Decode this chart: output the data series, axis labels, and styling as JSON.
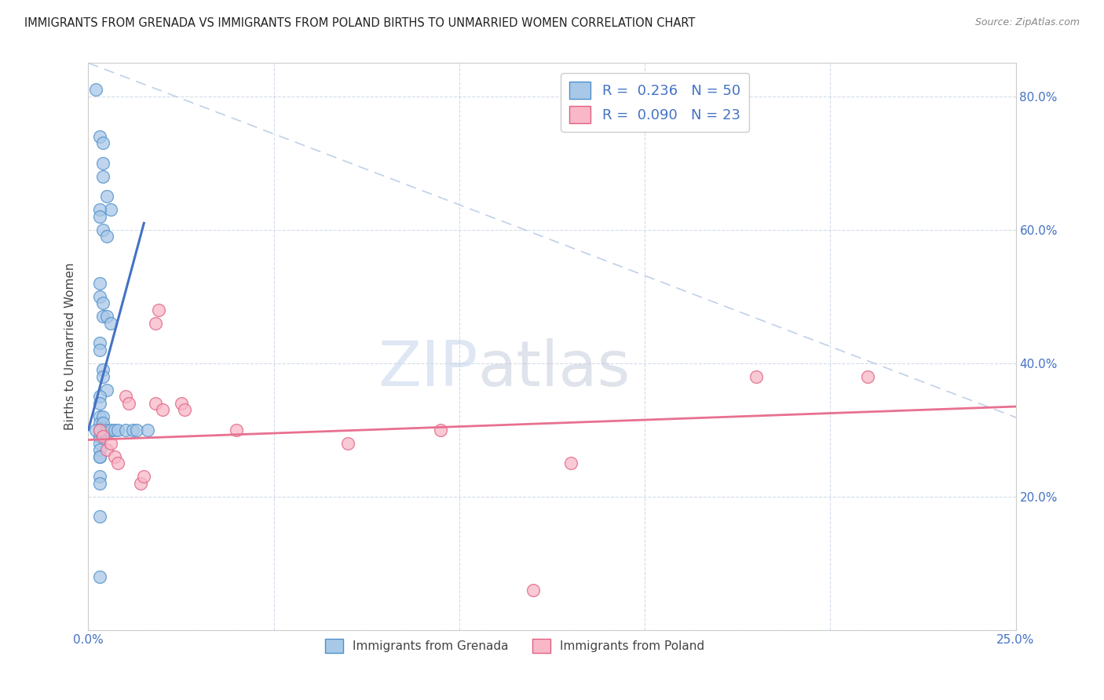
{
  "title": "IMMIGRANTS FROM GRENADA VS IMMIGRANTS FROM POLAND BIRTHS TO UNMARRIED WOMEN CORRELATION CHART",
  "source": "Source: ZipAtlas.com",
  "ylabel": "Births to Unmarried Women",
  "xlim": [
    0.0,
    0.25
  ],
  "ylim": [
    0.0,
    0.85
  ],
  "xtick_positions": [
    0.0,
    0.05,
    0.1,
    0.15,
    0.2,
    0.25
  ],
  "xticklabels": [
    "0.0%",
    "",
    "",
    "",
    "",
    "25.0%"
  ],
  "ytick_positions": [
    0.0,
    0.2,
    0.4,
    0.6,
    0.8
  ],
  "yticklabels": [
    "",
    "20.0%",
    "40.0%",
    "60.0%",
    "80.0%"
  ],
  "R1": 0.236,
  "N1": 50,
  "R2": 0.09,
  "N2": 23,
  "color_grenada_face": "#a8c8e8",
  "color_grenada_edge": "#5090c8",
  "color_poland_face": "#f8b8c8",
  "color_poland_edge": "#e06080",
  "trendline_grenada": "#4472c4",
  "trendline_poland": "#e87090",
  "diagonal_color": "#c0d0e8",
  "watermark_zip": "ZIP",
  "watermark_atlas": "atlas",
  "grenada_x": [
    0.002,
    0.003,
    0.004,
    0.004,
    0.004,
    0.005,
    0.006,
    0.003,
    0.003,
    0.004,
    0.005,
    0.003,
    0.003,
    0.004,
    0.004,
    0.005,
    0.006,
    0.003,
    0.003,
    0.004,
    0.004,
    0.005,
    0.003,
    0.003,
    0.003,
    0.003,
    0.004,
    0.004,
    0.003,
    0.003,
    0.003,
    0.003,
    0.003,
    0.003,
    0.003,
    0.003,
    0.003,
    0.003,
    0.003,
    0.003,
    0.005,
    0.006,
    0.007,
    0.008,
    0.01,
    0.012,
    0.013,
    0.016,
    0.003,
    0.002
  ],
  "grenada_y": [
    0.81,
    0.74,
    0.73,
    0.7,
    0.68,
    0.65,
    0.63,
    0.63,
    0.62,
    0.6,
    0.59,
    0.52,
    0.5,
    0.49,
    0.47,
    0.47,
    0.46,
    0.43,
    0.42,
    0.39,
    0.38,
    0.36,
    0.35,
    0.34,
    0.32,
    0.31,
    0.32,
    0.31,
    0.3,
    0.3,
    0.29,
    0.29,
    0.28,
    0.27,
    0.26,
    0.26,
    0.23,
    0.22,
    0.17,
    0.3,
    0.3,
    0.3,
    0.3,
    0.3,
    0.3,
    0.3,
    0.3,
    0.3,
    0.08,
    0.3
  ],
  "poland_x": [
    0.003,
    0.004,
    0.005,
    0.006,
    0.007,
    0.008,
    0.01,
    0.011,
    0.014,
    0.015,
    0.018,
    0.019,
    0.018,
    0.02,
    0.025,
    0.026,
    0.04,
    0.07,
    0.095,
    0.13,
    0.18,
    0.21,
    0.12
  ],
  "poland_y": [
    0.3,
    0.29,
    0.27,
    0.28,
    0.26,
    0.25,
    0.35,
    0.34,
    0.22,
    0.23,
    0.46,
    0.48,
    0.34,
    0.33,
    0.34,
    0.33,
    0.3,
    0.28,
    0.3,
    0.25,
    0.38,
    0.38,
    0.06
  ],
  "grenada_trend_x": [
    0.0,
    0.015
  ],
  "grenada_trend_y": [
    0.3,
    0.61
  ],
  "poland_trend_x": [
    0.0,
    0.25
  ],
  "poland_trend_y": [
    0.285,
    0.335
  ]
}
